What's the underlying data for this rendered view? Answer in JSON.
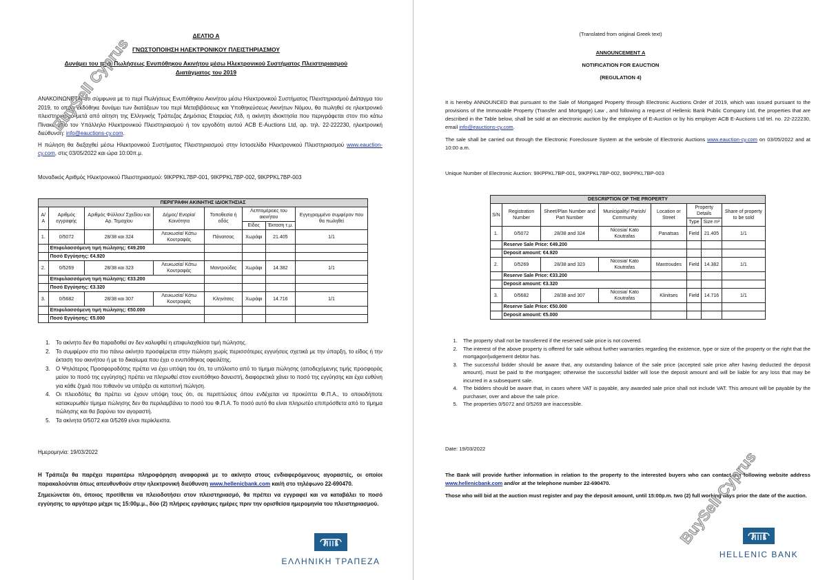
{
  "watermark": "BuySell Cyprus",
  "greek": {
    "title1": "ΔΕΛΤΙΟ Α",
    "title2": "ΓΝΩΣΤΟΠΟΙΗΣΗ ΗΛΕΚΤΡΟΝΙΚΟΥ ΠΛΕΙΣΤΗΡΙΑΣΜΟΥ",
    "title3": "Δυνάμει του περί Πωλήσεως Ενυπόθηκου Ακινήτου μέσω Ηλεκτρονικού Συστήματος Πλειστηριασμού",
    "title4": "Διατάγματος του 2019",
    "para1": "ΑΝΑΚΟΙΝΩΝΕΤΑΙ ότι σύμφωνα με το περί Πωλήσεως Ενυπόθηκου Ακινήτου μέσω Ηλεκτρονικού Συστήματος Πλειστηριασμού Διάταγμα του 2019, το οποίο εκδόθηκε δυνάμει των διατάξεων του περί Μεταβιβάσεως και Υποθηκεύσεως Ακινήτων Νόμου, θα πωληθεί σε ηλεκτρονικό πλειστηριασμό μετά από αίτηση της Ελληνικής Τράπεζας Δημόσιας Εταιρείας Λτδ, η ακίνητη ιδιοκτησία που περιγράφεται στον πιο κάτω Πίνακα από τον Υπάλληλο Ηλεκτρονικού Πλειστηριασμού ή τον εργοδότη αυτού ACB E-Auctions Ltd, αρ. τηλ. 22-222230, ηλεκτρονική διεύθυνση: ",
    "email": "info@eauctions-cy.com",
    "para2a": "Η πώληση θα διεξαχθεί μέσω Ηλεκτρονικού Συστήματος Πλειστηριασμού στην Ιστοσελίδα Ηλεκτρονικού Πλειστηριασμού ",
    "website": "www.eauction-cy.com",
    "para2b": ", στις 03/05/2022 και ώρα 10:00π.μ.",
    "unique": "Μοναδικός Αριθμός Ηλεκτρονικού Πλειστηριασμού: 9IKPPKL7BP-001, 9IKPPKL7BP-002, 9IKPPKL7BP-003",
    "table": {
      "caption": "ΠΕΡΙΓΡΑΦΗ ΑΚΙΝΗΤΗΣ ΙΔΙΟΚΤΗΣΙΑΣ",
      "headers": [
        "Α/Α",
        "Αριθμός εγγραφής",
        "Αριθμός Φύλλου/ Σχεδίου και Αρ. Τεμαχίου",
        "Δήμος/ Ενορία/ Κοινότητα",
        "Τοποθεσία ή οδός",
        "Λεπτομέρειες του ακινήτου",
        "Εγγεγραμμένο συμφέρον που θα πωληθεί"
      ],
      "subheaders": [
        "Είδος",
        "Έκταση τ.μ."
      ],
      "rows": [
        {
          "cells": [
            "1.",
            "0/5072",
            "28/38 και 324",
            "Λευκωσία/ Κάτω Κουτραφάς",
            "Πάνατσας",
            "Χωράφι",
            "21.405",
            "1/1"
          ],
          "reserve": "Επιφυλασσόμενη τιμή πώλησης: €49.200",
          "deposit": "Ποσό Εγγύησης: €4.920"
        },
        {
          "cells": [
            "2.",
            "0/5269",
            "28/38 και 323",
            "Λευκωσία/ Κάτω Κουτραφάς",
            "Μαντρούδες",
            "Χωράφι",
            "14.382",
            "1/1"
          ],
          "reserve": "Επιφυλασσόμενη τιμή πώλησης: €33.200",
          "deposit": "Ποσό Εγγύησης: €3.320"
        },
        {
          "cells": [
            "3.",
            "0/5682",
            "28/38 και 307",
            "Λευκωσία/ Κάτω Κουτραφάς",
            "Κληνίτσες",
            "Χωράφι",
            "14.716",
            "1/1"
          ],
          "reserve": "Επιφυλασσόμενη τιμή πώλησης: €50.000",
          "deposit": "Ποσό Εγγύησης: €5.000"
        }
      ]
    },
    "notes": [
      "Το ακίνητο δεν θα παραδοθεί αν δεν καλυφθεί η επιφυλαχθείσα τιμή πώλησης.",
      "Το συμφέρον στο πιο πάνω ακίνητο προσφέρεται στην πώληση χωρίς περισσότερες εγγυήσεις σχετικά με την ύπαρξη, το είδος ή την έκταση του ακινήτου ή με το δικαίωμα που έχει ο ενυπόθηκος οφειλέτης.",
      "Ο Ψηλότερος Προσφοροδότης πρέπει να έχει υπόψη του ότι, το υπόλοιπο από το τίμημα πώλησης (αποδεχόμενης τιμής προσφοράς μείον το ποσό της εγγύησης) πρέπει να πληρωθεί στον ενυπόθηκο δανειστή, διαφορετικά χάνει το ποσό της εγγύησης και έχει ευθύνη για κάθε ζημιά που πιθανόν να υπάρξει σε κατοπινή πώληση.",
      "Οι πλειοδότες θα πρέπει να έχουν υπόψη τους ότι, σε περιπτώσεις όπου ενδέχεται να προκύπτει Φ.Π.Α., το οποιοδήποτε κατακυρωθέν τίμημα πώλησης δεν θα περιλαμβάνει το ποσό του Φ.Π.Α. Το ποσό αυτό θα είναι πληρωτέο επιπρόσθετα από το τίμημα πώλησης και θα βαρύνει τον αγοραστή.",
      "Τα ακίνητα 0/5072 και 0/5269 είναι περίκλειστα."
    ],
    "date": "Ημερομηνία: 19/03/2022",
    "bank_a": "Η Τράπεζα θα παρέχει περαιτέρω πληροφόρηση αναφορικά με το ακίνητο στους ενδιαφερόμενους αγοραστές, οι οποίοι παρακαλούνται όπως απευθυνθούν στην ηλεκτρονική διεύθυνση ",
    "bank_link": "www.hellenicbank.com",
    "bank_b": " και/ή στο τηλέφωνο 22-690470.",
    "register": "Σημειώνεται ότι, όποιος προτίθεται να πλειοδοτήσει στον πλειστηριασμό, θα πρέπει να εγγραφεί και να καταβάλει το ποσό εγγύησης το αργότερο μέχρι τις 15:00μ.μ., δύο (2) πλήρεις εργάσιμες ημέρες πριν την ορισθείσα ημερομηνία του πλειστηριασμού.",
    "logo_name": "ΕΛΛΗΝΙΚΗ ΤΡΑΠΕΖΑ"
  },
  "english": {
    "translated": "(Translated from original Greek text)",
    "title1": "ANNOUNCEMENT A",
    "title2": "NOTIFICATION FOR EAUCTION",
    "title3": "(REGULATION 4)",
    "para1": "It is hereby ANNOUNCED that pursuant to the Sale of Mortgaged Property through Electronic Auctions Order of 2019, which was issued pursuant to the provisions of the  Immovable Property (Transfer and Mortgage) Law , and  following a request of Hellenic Bank Public Company Ltd, the properties that are described in the Table below, shall be sold at an electronic auction by the employee of E-Auction or by his employer ACB E-Auctions Ltd tel. no. 22-222230, email ",
    "email": "info@eauctions-cy.com",
    "para2a": "The sale shall be carried out through the Electronic Foreclosure System at the website of Electronic Auctions ",
    "website": "www.eauction-cy.com",
    "para2b": "  on 03/05/2022 and at 10:00 a.m.",
    "unique": "Unique Number of Electronic Auction: 9IKPPKL7BP-001, 9IKPPKL7BP-002, 9IKPPKL7BP-003",
    "table": {
      "caption": "DESCRIPTION OF THE PROPERTY",
      "headers": [
        "S/N",
        "Registration Number",
        "Sheet/Plan Number and Part Number",
        "Municipality/ Parish/ Community",
        "Location or Street",
        "Property Details",
        "Share of property to be sold"
      ],
      "subheaders": [
        "Type",
        "Size m²"
      ],
      "rows": [
        {
          "cells": [
            "1.",
            "0/5072",
            "28/38 and 324",
            "Nicosia/ Kato Koutrafas",
            "Panatsas",
            "Field",
            "21.405",
            "1/1"
          ],
          "reserve": "Reserve Sale Price: €49.200",
          "deposit": "Deposit amount: €4.920"
        },
        {
          "cells": [
            "2.",
            "0/5269",
            "28/38 and 323",
            "Nicosia/ Kato Koutrafas",
            "Mantroudes",
            "Field",
            "14.382",
            "1/1"
          ],
          "reserve": "Reserve Sale Price: €33.200",
          "deposit": "Deposit amount: €3.320"
        },
        {
          "cells": [
            "3.",
            "0/5682",
            "28/38 and 307",
            "Nicosia/ Kato Koutrafas",
            "Klinitses",
            "Field",
            "14.716",
            "1/1"
          ],
          "reserve": "Reserve Sale Price: €50.000",
          "deposit": "Deposit amount: €5.000"
        }
      ]
    },
    "notes": [
      "The property shall not be transferred if the reserved sale price is not covered.",
      "The interest of the above property is offered for sale without further warranties regarding the existence, type or size of the property or the right that the mortgagor/judgement debtor has.",
      "The successful bidder should be aware that, any outstanding balance of the sale price (accepted sale price after having deducted the deposit amount), must be paid to the mortgagee; otherwise the successful bidder will lose the deposit amount and will be liable for any loss that may be incurred in a subsequent sale.",
      "The bidders should be aware that, in cases where VAT is payable, any awarded sale price shall not include VAT. This amount will be payable by the purchaser, over and above the sale price.",
      "The properties 0/5072 and 0/5269 are inaccessible."
    ],
    "date": "Date: 19/03/2022",
    "bank_a": "The Bank will provide further information in relation to the property to the interested buyers who can contact the following website address ",
    "bank_link": "www.hellenicbank.com",
    "bank_b": " and/or at the telephone number 22-690470.",
    "register": "Those who will bid at the auction must register and pay the deposit amount, until 15:00p.m. two (2) full working days prior the date of the auction.",
    "logo_name": "HELLENIC BANK"
  },
  "colors": {
    "brand": "#1f5f8f",
    "link": "#1a2f9a",
    "table_caption_bg": "#d6d6d6"
  }
}
